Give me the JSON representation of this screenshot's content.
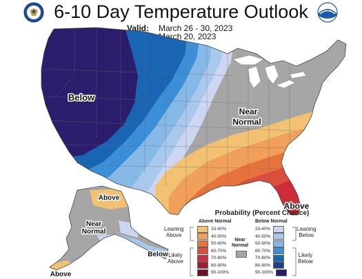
{
  "header": {
    "title": "6-10 Day Temperature Outlook",
    "valid_label": "Valid:",
    "valid_value": "March 26 - 30, 2023",
    "issued_label": "Issued:",
    "issued_value": "March 20, 2023"
  },
  "map": {
    "labels": {
      "below_west": "Below",
      "near_normal_east_1": "Near",
      "near_normal_east_2": "Normal",
      "above_southeast": "Above",
      "alaska_above": "Above",
      "alaska_near_1": "Near",
      "alaska_near_2": "Normal",
      "alaska_below": "Below",
      "alaska_above_sw": "Above"
    },
    "colors": {
      "below_90": "#2b1d6b",
      "below_80": "#1e3f8f",
      "below_70": "#1a64b4",
      "below_60": "#3a8fd8",
      "below_50": "#86b9e8",
      "below_40": "#a9c9ec",
      "below_33": "#cdd6f0",
      "near_normal": "#a6a6a6",
      "above_33": "#f2c172",
      "above_40": "#f0a059",
      "above_50": "#e6733c",
      "above_60": "#d94f3b",
      "above_70": "#cc2e3a",
      "above_80": "#a21d35",
      "above_90": "#6d1024"
    }
  },
  "legend": {
    "title": "Probability (Percent Chance)",
    "above_header": "Above Normal",
    "below_header": "Below Normal",
    "near_normal_1": "Near",
    "near_normal_2": "Normal",
    "leaning_above_1": "Leaning",
    "leaning_above_2": "Above",
    "likely_above_1": "Likely",
    "likely_above_2": "Above",
    "leaning_below_1": "Leaning",
    "leaning_below_2": "Below",
    "likely_below_1": "Likely",
    "likely_below_2": "Below",
    "ranges": [
      "33-40%",
      "40-50%",
      "50-60%",
      "60-70%",
      "70-80%",
      "80-90%",
      "90-100%"
    ],
    "above_colors": [
      "#f2c172",
      "#f0a059",
      "#e6733c",
      "#d94f3b",
      "#cc2e3a",
      "#a21d35",
      "#6d1024"
    ],
    "below_colors": [
      "#cdd6f0",
      "#a9c9ec",
      "#86b9e8",
      "#3a8fd8",
      "#1a64b4",
      "#1e3f8f",
      "#2b1d6b"
    ]
  },
  "logos": {
    "left": "doc-seal-icon",
    "right": "noaa-logo-icon"
  }
}
